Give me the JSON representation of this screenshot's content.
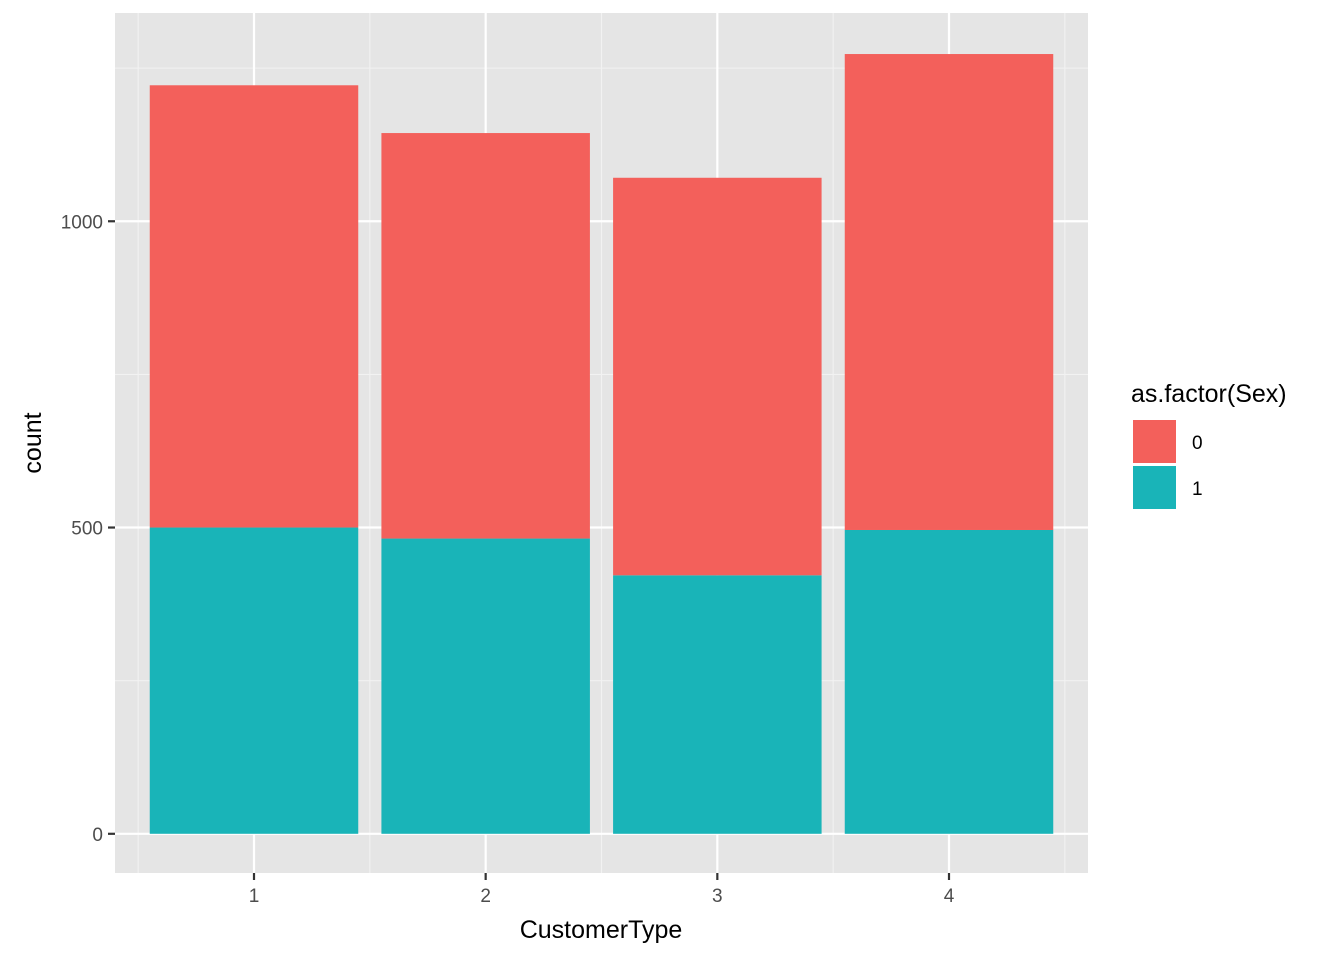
{
  "chart_data": {
    "type": "bar",
    "stacked": true,
    "categories": [
      "1",
      "2",
      "3",
      "4"
    ],
    "series": [
      {
        "name": "0",
        "values": [
          722,
          662,
          649,
          777
        ],
        "color": "#f3605b"
      },
      {
        "name": "1",
        "values": [
          500,
          482,
          422,
          496
        ],
        "color": "#19b4b8"
      }
    ],
    "xlabel": "CustomerType",
    "ylabel": "count",
    "yticks": [
      0,
      500,
      1000
    ],
    "ylim": [
      -64,
      1340
    ],
    "grid": true,
    "panel_background": "#e5e5e5",
    "legend": {
      "title": "as.factor(Sex)",
      "placement": "right",
      "entries": [
        {
          "label": "0",
          "color": "#f3605b"
        },
        {
          "label": "1",
          "color": "#19b4b8"
        }
      ]
    }
  }
}
